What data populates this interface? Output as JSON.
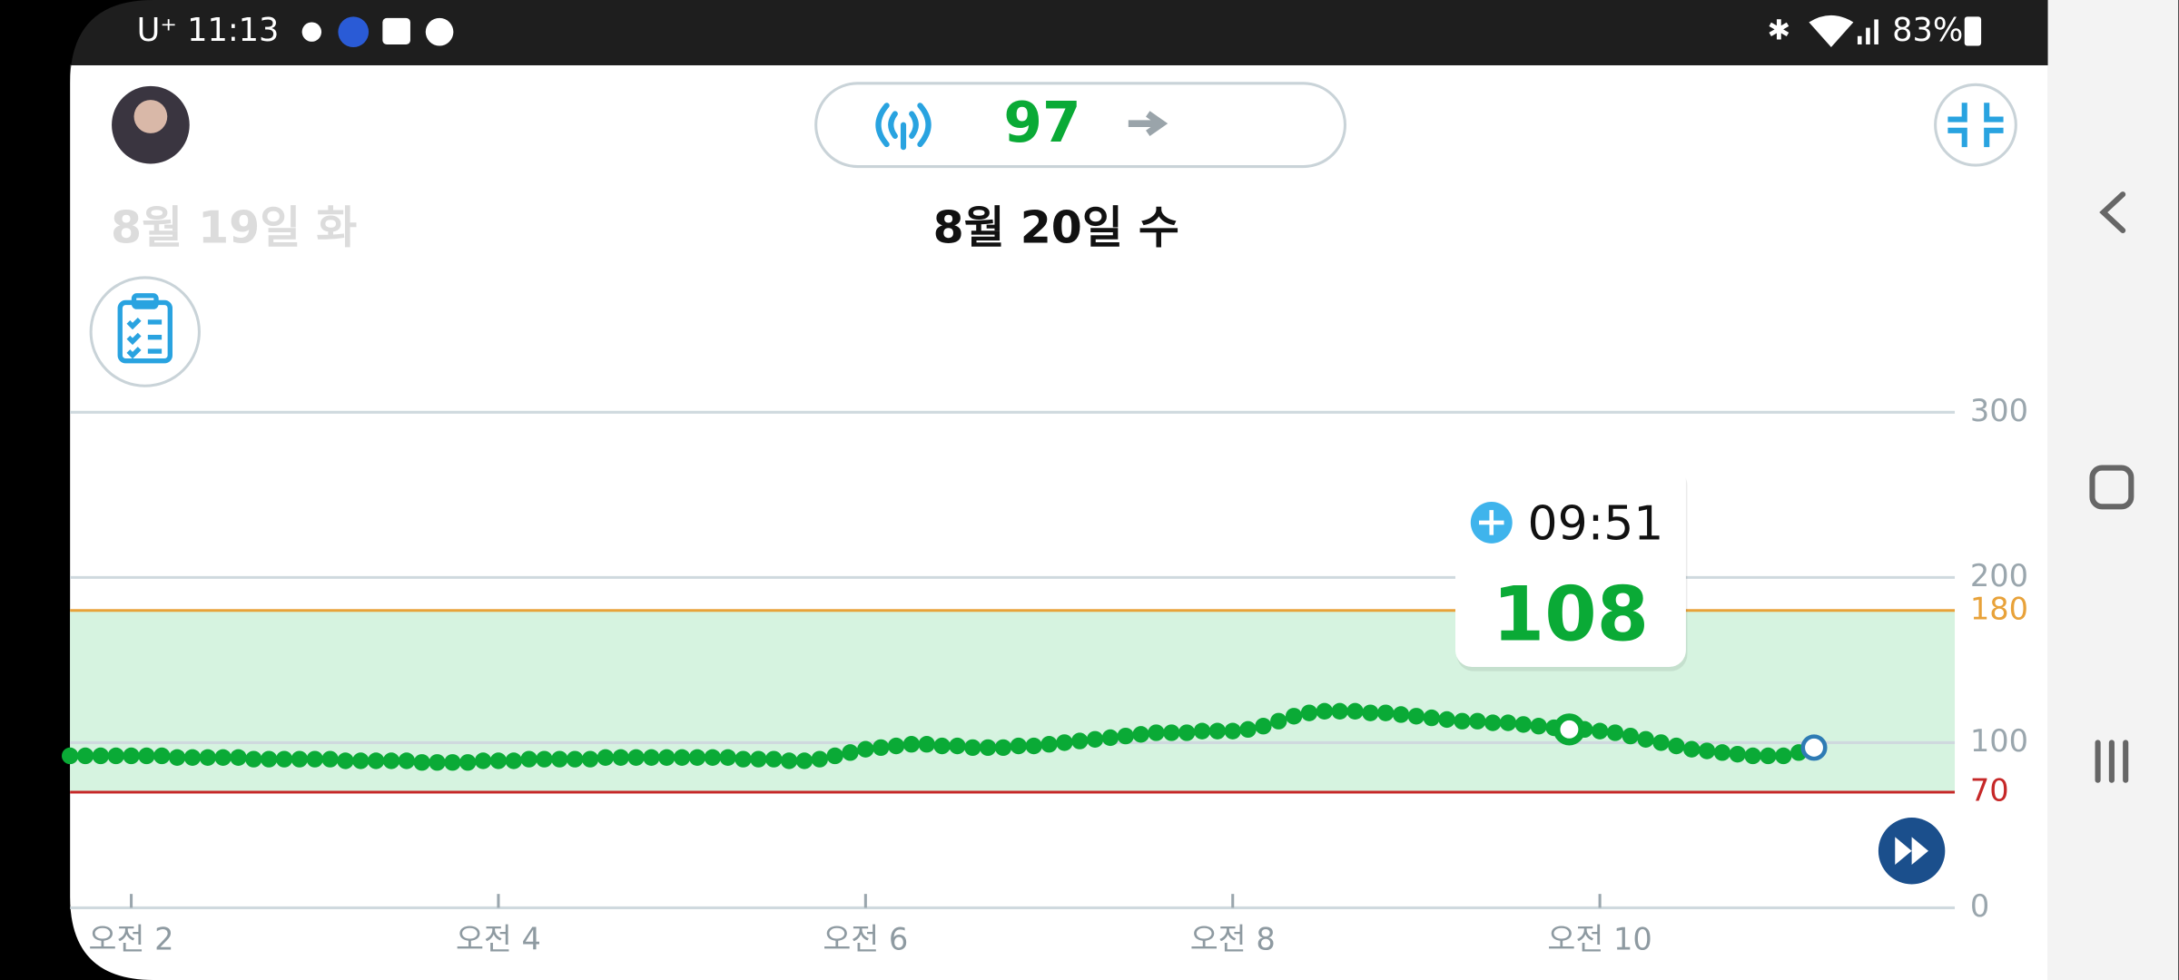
{
  "status_bar": {
    "carrier_time": "U⁺ 11:13",
    "battery": "83%"
  },
  "header": {
    "current_value": 97
  },
  "dates": {
    "previous": "8월 19일 화",
    "current": "8월 20일 수"
  },
  "chart_data": {
    "type": "line",
    "color": "#0aaa36",
    "x": [
      100,
      105,
      110,
      115,
      120,
      125,
      130,
      135,
      140,
      145,
      150,
      155,
      160,
      165,
      170,
      175,
      180,
      185,
      190,
      195,
      200,
      205,
      210,
      215,
      220,
      225,
      230,
      235,
      240,
      245,
      250,
      255,
      260,
      265,
      270,
      275,
      280,
      285,
      290,
      295,
      300,
      305,
      310,
      315,
      320,
      325,
      330,
      335,
      340,
      345,
      350,
      355,
      360,
      365,
      370,
      375,
      380,
      385,
      390,
      395,
      400,
      405,
      410,
      415,
      420,
      425,
      430,
      435,
      440,
      445,
      450,
      455,
      460,
      465,
      470,
      475,
      480,
      485,
      490,
      495,
      500,
      505,
      510,
      515,
      520,
      525,
      530,
      535,
      540,
      545,
      550,
      555,
      560,
      565,
      570,
      575,
      580,
      585,
      590,
      595,
      600,
      605,
      610,
      615,
      620,
      625,
      630,
      635,
      640,
      645,
      650,
      655,
      660,
      665,
      670
    ],
    "values": [
      92,
      92,
      92,
      92,
      92,
      92,
      92,
      91,
      91,
      91,
      91,
      91,
      90,
      90,
      90,
      90,
      90,
      90,
      89,
      89,
      89,
      89,
      89,
      88,
      88,
      88,
      88,
      89,
      89,
      89,
      90,
      90,
      90,
      90,
      90,
      91,
      91,
      91,
      91,
      91,
      91,
      91,
      91,
      91,
      90,
      90,
      90,
      89,
      89,
      90,
      92,
      94,
      96,
      97,
      98,
      99,
      99,
      98,
      98,
      97,
      97,
      97,
      98,
      98,
      99,
      100,
      101,
      102,
      103,
      104,
      105,
      106,
      106,
      106,
      107,
      107,
      107,
      108,
      110,
      113,
      116,
      118,
      119,
      119,
      119,
      118,
      118,
      117,
      116,
      115,
      114,
      113,
      113,
      112,
      112,
      111,
      110,
      109,
      108,
      108,
      107,
      106,
      104,
      102,
      100,
      98,
      96,
      95,
      94,
      93,
      92,
      92,
      92,
      94,
      97
    ],
    "xlim": [
      100,
      716
    ],
    "xticks": [
      {
        "value": 120,
        "label": "오전 2"
      },
      {
        "value": 240,
        "label": "오전 4"
      },
      {
        "value": 360,
        "label": "오전 6"
      },
      {
        "value": 480,
        "label": "오전 8"
      },
      {
        "value": 600,
        "label": "오전 10"
      }
    ],
    "ylim": [
      0,
      300
    ],
    "yticks": [
      0,
      100,
      200,
      300
    ],
    "grid": true,
    "target_range": {
      "low": 70,
      "high": 180,
      "fill": "#d6f3e0",
      "low_color": "#c62828",
      "high_color": "#e8a23a"
    },
    "tooltip": {
      "time": "09:51",
      "value": 108
    }
  }
}
